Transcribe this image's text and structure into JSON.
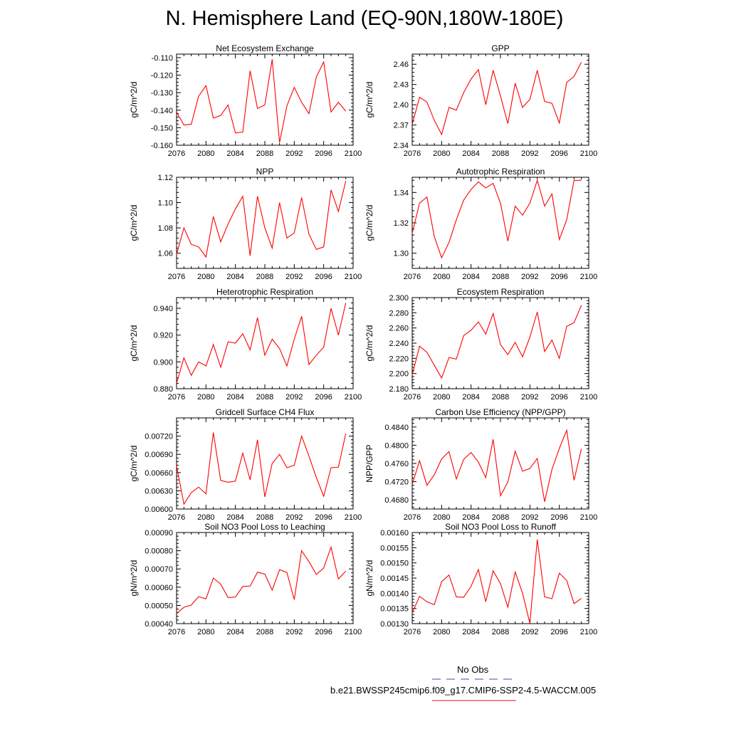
{
  "page_title": "N. Hemisphere Land (EQ-90N,180W-180E)",
  "legend": {
    "obs_label": "No Obs",
    "obs_color": "#6a6ad0",
    "model_label": "b.e21.BWSSP245cmip6.f09_g17.CMIP6-SSP2-4.5-WACCM.005",
    "model_color": "#e84040"
  },
  "chart_data": [
    {
      "type": "line",
      "title": "Net Ecosystem Exchange",
      "ylabel": "gC/m^2/d",
      "xlim": [
        2076,
        2100
      ],
      "ylim": [
        -0.16,
        -0.108
      ],
      "xticks": [
        "2076",
        "2080",
        "2084",
        "2088",
        "2092",
        "2096",
        "2100"
      ],
      "yticks": [
        -0.16,
        -0.15,
        -0.14,
        -0.13,
        -0.12,
        -0.11
      ],
      "ytick_labels": [
        "-0.160",
        "-0.150",
        "-0.140",
        "-0.130",
        "-0.120",
        "-0.110"
      ],
      "series": [
        {
          "color": "#ff0000",
          "x": [
            2076,
            2077,
            2078,
            2079,
            2080,
            2081,
            2082,
            2083,
            2084,
            2085,
            2086,
            2087,
            2088,
            2089,
            2090,
            2091,
            2092,
            2093,
            2094,
            2095,
            2096,
            2097,
            2098,
            2099
          ],
          "values": [
            -0.141,
            -0.1485,
            -0.148,
            -0.132,
            -0.126,
            -0.1445,
            -0.143,
            -0.137,
            -0.153,
            -0.1525,
            -0.1175,
            -0.139,
            -0.137,
            -0.111,
            -0.1585,
            -0.1375,
            -0.127,
            -0.1355,
            -0.142,
            -0.121,
            -0.1125,
            -0.141,
            -0.1355,
            -0.1405
          ]
        }
      ]
    },
    {
      "type": "line",
      "title": "GPP",
      "ylabel": "gC/m^2/d",
      "xlim": [
        2076,
        2100
      ],
      "ylim": [
        2.34,
        2.475
      ],
      "xticks": [
        "2076",
        "2080",
        "2084",
        "2088",
        "2092",
        "2096",
        "2100"
      ],
      "yticks": [
        2.34,
        2.37,
        2.4,
        2.43,
        2.46
      ],
      "ytick_labels": [
        "2.34",
        "2.37",
        "2.40",
        "2.43",
        "2.46"
      ],
      "series": [
        {
          "color": "#ff0000",
          "x": [
            2076,
            2077,
            2078,
            2079,
            2080,
            2081,
            2082,
            2083,
            2084,
            2085,
            2086,
            2087,
            2088,
            2089,
            2090,
            2091,
            2092,
            2093,
            2094,
            2095,
            2096,
            2097,
            2098,
            2099
          ],
          "values": [
            2.371,
            2.411,
            2.404,
            2.377,
            2.356,
            2.396,
            2.392,
            2.418,
            2.438,
            2.452,
            2.4,
            2.451,
            2.413,
            2.372,
            2.432,
            2.396,
            2.408,
            2.451,
            2.405,
            2.402,
            2.373,
            2.433,
            2.442,
            2.463
          ]
        }
      ]
    },
    {
      "type": "line",
      "title": "NPP",
      "ylabel": "gC/m^2/d",
      "xlim": [
        2076,
        2100
      ],
      "ylim": [
        1.048,
        1.12
      ],
      "xticks": [
        "2076",
        "2080",
        "2084",
        "2088",
        "2092",
        "2096",
        "2100"
      ],
      "yticks": [
        1.06,
        1.08,
        1.1,
        1.12
      ],
      "ytick_labels": [
        "1.06",
        "1.08",
        "1.10",
        "1.12"
      ],
      "series": [
        {
          "color": "#ff0000",
          "x": [
            2076,
            2077,
            2078,
            2079,
            2080,
            2081,
            2082,
            2083,
            2084,
            2085,
            2086,
            2087,
            2088,
            2089,
            2090,
            2091,
            2092,
            2093,
            2094,
            2095,
            2096,
            2097,
            2098,
            2099
          ],
          "values": [
            1.059,
            1.08,
            1.067,
            1.065,
            1.057,
            1.089,
            1.069,
            1.083,
            1.095,
            1.105,
            1.058,
            1.105,
            1.08,
            1.064,
            1.1,
            1.072,
            1.076,
            1.104,
            1.075,
            1.063,
            1.065,
            1.11,
            1.093,
            1.117
          ]
        }
      ]
    },
    {
      "type": "line",
      "title": "Autotrophic Respiration",
      "ylabel": "gC/m^2/d",
      "xlim": [
        2076,
        2100
      ],
      "ylim": [
        1.29,
        1.35
      ],
      "xticks": [
        "2076",
        "2080",
        "2084",
        "2088",
        "2092",
        "2096",
        "2100"
      ],
      "yticks": [
        1.3,
        1.32,
        1.34
      ],
      "ytick_labels": [
        "1.30",
        "1.32",
        "1.34"
      ],
      "series": [
        {
          "color": "#ff0000",
          "x": [
            2076,
            2077,
            2078,
            2079,
            2080,
            2081,
            2082,
            2083,
            2084,
            2085,
            2086,
            2087,
            2088,
            2089,
            2090,
            2091,
            2092,
            2093,
            2094,
            2095,
            2096,
            2097,
            2098,
            2099
          ],
          "values": [
            1.313,
            1.333,
            1.337,
            1.311,
            1.297,
            1.307,
            1.322,
            1.335,
            1.342,
            1.347,
            1.343,
            1.346,
            1.333,
            1.308,
            1.331,
            1.325,
            1.333,
            1.348,
            1.331,
            1.339,
            1.309,
            1.322,
            1.348,
            1.348
          ]
        }
      ]
    },
    {
      "type": "line",
      "title": "Heterotrophic Respiration",
      "ylabel": "gC/m^2/d",
      "xlim": [
        2076,
        2100
      ],
      "ylim": [
        0.88,
        0.948
      ],
      "xticks": [
        "2076",
        "2080",
        "2084",
        "2088",
        "2092",
        "2096",
        "2100"
      ],
      "yticks": [
        0.88,
        0.9,
        0.92,
        0.94
      ],
      "ytick_labels": [
        "0.880",
        "0.900",
        "0.920",
        "0.940"
      ],
      "series": [
        {
          "color": "#ff0000",
          "x": [
            2076,
            2077,
            2078,
            2079,
            2080,
            2081,
            2082,
            2083,
            2084,
            2085,
            2086,
            2087,
            2088,
            2089,
            2090,
            2091,
            2092,
            2093,
            2094,
            2095,
            2096,
            2097,
            2098,
            2099
          ],
          "values": [
            0.884,
            0.903,
            0.89,
            0.9,
            0.897,
            0.913,
            0.896,
            0.915,
            0.914,
            0.921,
            0.909,
            0.933,
            0.905,
            0.917,
            0.91,
            0.897,
            0.917,
            0.934,
            0.898,
            0.905,
            0.911,
            0.94,
            0.92,
            0.944
          ]
        }
      ]
    },
    {
      "type": "line",
      "title": "Ecosystem Respiration",
      "ylabel": "gC/m^2/d",
      "xlim": [
        2076,
        2100
      ],
      "ylim": [
        2.18,
        2.3
      ],
      "xticks": [
        "2076",
        "2080",
        "2084",
        "2088",
        "2092",
        "2096",
        "2100"
      ],
      "yticks": [
        2.18,
        2.2,
        2.22,
        2.24,
        2.26,
        2.28,
        2.3
      ],
      "ytick_labels": [
        "2.180",
        "2.200",
        "2.220",
        "2.240",
        "2.260",
        "2.280",
        "2.300"
      ],
      "series": [
        {
          "color": "#ff0000",
          "x": [
            2076,
            2077,
            2078,
            2079,
            2080,
            2081,
            2082,
            2083,
            2084,
            2085,
            2086,
            2087,
            2088,
            2089,
            2090,
            2091,
            2092,
            2093,
            2094,
            2095,
            2096,
            2097,
            2098,
            2099
          ],
          "values": [
            2.198,
            2.236,
            2.228,
            2.211,
            2.194,
            2.221,
            2.219,
            2.25,
            2.257,
            2.268,
            2.252,
            2.279,
            2.238,
            2.225,
            2.241,
            2.222,
            2.248,
            2.281,
            2.229,
            2.244,
            2.22,
            2.262,
            2.267,
            2.29
          ]
        }
      ]
    },
    {
      "type": "line",
      "title": "Gridcell Surface CH4 Flux",
      "ylabel": "gC/m^2/d",
      "xlim": [
        2076,
        2100
      ],
      "ylim": [
        0.006,
        0.0075
      ],
      "xticks": [
        "2076",
        "2080",
        "2084",
        "2088",
        "2092",
        "2096",
        "2100"
      ],
      "yticks": [
        0.006,
        0.0063,
        0.0066,
        0.0069,
        0.0072
      ],
      "ytick_labels": [
        "0.00600",
        "0.00630",
        "0.00660",
        "0.00690",
        "0.00720"
      ],
      "series": [
        {
          "color": "#ff0000",
          "x": [
            2076,
            2077,
            2078,
            2079,
            2080,
            2081,
            2082,
            2083,
            2084,
            2085,
            2086,
            2087,
            2088,
            2089,
            2090,
            2091,
            2092,
            2093,
            2094,
            2095,
            2096,
            2097,
            2098,
            2099
          ],
          "values": [
            0.00671,
            0.00608,
            0.00627,
            0.00636,
            0.00625,
            0.00726,
            0.00647,
            0.00644,
            0.00646,
            0.00692,
            0.00648,
            0.00714,
            0.0062,
            0.00675,
            0.0069,
            0.00668,
            0.00672,
            0.0072,
            0.00687,
            0.00652,
            0.00621,
            0.00668,
            0.00669,
            0.00724
          ]
        }
      ]
    },
    {
      "type": "line",
      "title": "Carbon Use Efficiency (NPP/GPP)",
      "ylabel": "NPP/GPP",
      "xlim": [
        2076,
        2100
      ],
      "ylim": [
        0.466,
        0.486
      ],
      "xticks": [
        "2076",
        "2080",
        "2084",
        "2088",
        "2092",
        "2096",
        "2100"
      ],
      "yticks": [
        0.468,
        0.472,
        0.476,
        0.48,
        0.484
      ],
      "ytick_labels": [
        "0.4680",
        "0.4720",
        "0.4760",
        "0.4800",
        "0.4840"
      ],
      "series": [
        {
          "color": "#ff0000",
          "x": [
            2076,
            2077,
            2078,
            2079,
            2080,
            2081,
            2082,
            2083,
            2084,
            2085,
            2086,
            2087,
            2088,
            2089,
            2090,
            2091,
            2092,
            2093,
            2094,
            2095,
            2096,
            2097,
            2098,
            2099
          ],
          "values": [
            0.4714,
            0.4766,
            0.4712,
            0.4735,
            0.477,
            0.4786,
            0.4726,
            0.4769,
            0.4784,
            0.4763,
            0.4729,
            0.4813,
            0.4689,
            0.4719,
            0.4787,
            0.4743,
            0.4749,
            0.4771,
            0.4676,
            0.4747,
            0.4793,
            0.4833,
            0.4723,
            0.4792
          ]
        }
      ]
    },
    {
      "type": "line",
      "title": "Soil NO3 Pool Loss to Leaching",
      "ylabel": "gN/m^2/d",
      "xlim": [
        2076,
        2100
      ],
      "ylim": [
        0.0004,
        0.0009
      ],
      "xticks": [
        "2076",
        "2080",
        "2084",
        "2088",
        "2092",
        "2096",
        "2100"
      ],
      "yticks": [
        0.0004,
        0.0005,
        0.0006,
        0.0007,
        0.0008,
        0.0009
      ],
      "ytick_labels": [
        "0.00040",
        "0.00050",
        "0.00060",
        "0.00070",
        "0.00080",
        "0.00090"
      ],
      "series": [
        {
          "color": "#ff0000",
          "x": [
            2076,
            2077,
            2078,
            2079,
            2080,
            2081,
            2082,
            2083,
            2084,
            2085,
            2086,
            2087,
            2088,
            2089,
            2090,
            2091,
            2092,
            2093,
            2094,
            2095,
            2096,
            2097,
            2098,
            2099
          ],
          "values": [
            0.000455,
            0.00049,
            0.000502,
            0.000548,
            0.000536,
            0.00065,
            0.000617,
            0.000543,
            0.000546,
            0.000604,
            0.000606,
            0.000682,
            0.000672,
            0.000584,
            0.000696,
            0.000681,
            0.000532,
            0.0008,
            0.00074,
            0.00067,
            0.000705,
            0.00082,
            0.000645,
            0.000688
          ]
        }
      ]
    },
    {
      "type": "line",
      "title": "Soil NO3 Pool Loss to Runoff",
      "ylabel": "gN/m^2/d",
      "xlim": [
        2076,
        2100
      ],
      "ylim": [
        0.0013,
        0.0016
      ],
      "xticks": [
        "2076",
        "2080",
        "2084",
        "2088",
        "2092",
        "2096",
        "2100"
      ],
      "yticks": [
        0.0013,
        0.00135,
        0.0014,
        0.00145,
        0.0015,
        0.00155,
        0.0016
      ],
      "ytick_labels": [
        "0.00130",
        "0.00135",
        "0.00140",
        "0.00145",
        "0.00150",
        "0.00155",
        "0.00160"
      ],
      "series": [
        {
          "color": "#ff0000",
          "x": [
            2076,
            2077,
            2078,
            2079,
            2080,
            2081,
            2082,
            2083,
            2084,
            2085,
            2086,
            2087,
            2088,
            2089,
            2090,
            2091,
            2092,
            2093,
            2094,
            2095,
            2096,
            2097,
            2098,
            2099
          ],
          "values": [
            0.001335,
            0.00139,
            0.001372,
            0.001362,
            0.001438,
            0.00146,
            0.001388,
            0.001387,
            0.001423,
            0.001478,
            0.001372,
            0.001474,
            0.001432,
            0.001354,
            0.00147,
            0.0014,
            0.001301,
            0.001577,
            0.001388,
            0.001382,
            0.001466,
            0.001442,
            0.001366,
            0.001383
          ]
        }
      ]
    }
  ]
}
